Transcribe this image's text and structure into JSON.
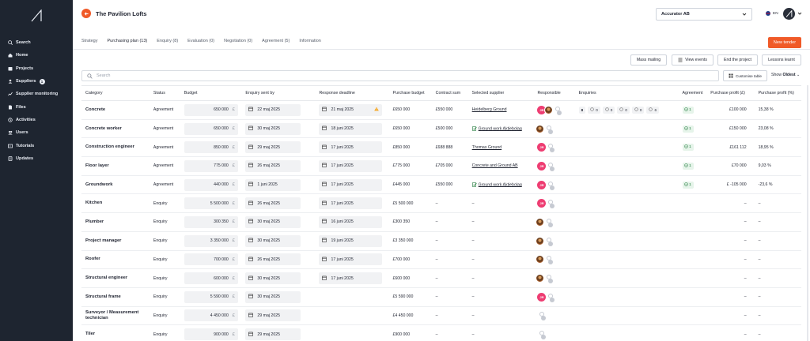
{
  "sidebar": {
    "items": [
      {
        "label": "Search",
        "icon": "search-icon"
      },
      {
        "label": "Home",
        "icon": "home-icon"
      },
      {
        "label": "Projects",
        "icon": "projects-icon"
      },
      {
        "label": "Suppliers",
        "icon": "suppliers-icon",
        "badge": "1"
      },
      {
        "label": "Supplier monitoring",
        "icon": "monitor-icon"
      },
      {
        "label": "Files",
        "icon": "file-icon"
      },
      {
        "label": "Activities",
        "icon": "activity-icon"
      },
      {
        "label": "Users",
        "icon": "users-icon"
      },
      {
        "label": "Tutorials",
        "icon": "tutorial-icon"
      },
      {
        "label": "Updates",
        "icon": "updates-icon"
      }
    ]
  },
  "header": {
    "title": "The Pavilion Lofts",
    "company": "Accurator AB",
    "language": "EN"
  },
  "tabs": [
    {
      "label": "Strategy",
      "active": false
    },
    {
      "label": "Purchasing plan (13)",
      "active": true
    },
    {
      "label": "Enquiry (8)",
      "active": false
    },
    {
      "label": "Evaluation (0)",
      "active": false
    },
    {
      "label": "Negotiation (0)",
      "active": false
    },
    {
      "label": "Agreement (5)",
      "active": false
    },
    {
      "label": "Information",
      "active": false
    }
  ],
  "new_tender": "New tender",
  "actions": {
    "mass_mailing": "Mass mailing",
    "view_events": "View events",
    "end_project": "End the project",
    "lessons": "Lessons learnt"
  },
  "search": {
    "placeholder": "Search"
  },
  "customise": "Customise table",
  "show": {
    "label": "Show",
    "value": "Oldest"
  },
  "columns": [
    "Category",
    "Status",
    "Budget",
    "Enquiry sent by",
    "Response deadline",
    "Purchase budget",
    "Contract sum",
    "Selected supplier",
    "Responsible",
    "Enquiries",
    "Agreement",
    "Purchase profit (£)",
    "Purchase profit (%)"
  ],
  "currency": "£",
  "rows": [
    {
      "category": "Concrete",
      "status": "Agreement",
      "budget": "650 000",
      "sent": "22 maj 2025",
      "deadline": "21 maj 2025",
      "warn": true,
      "pbudget": "£650 000",
      "csum": "£550 000",
      "supplier": "Heidelberg Ground",
      "sup_icon": false,
      "resp": "pink+photo",
      "enq": true,
      "agr": "1",
      "profit": "£100 000",
      "pct": "15,38 %"
    },
    {
      "category": "Concrete worker",
      "status": "Agreement",
      "budget": "650 000",
      "sent": "30 maj 2025",
      "deadline": "18 juni 2025",
      "warn": false,
      "pbudget": "£650 000",
      "csum": "£500 000",
      "supplier": "Ground work Aktiebolag",
      "sup_icon": true,
      "resp": "photo",
      "enq": false,
      "agr": "1",
      "profit": "£150 000",
      "pct": "23,08 %"
    },
    {
      "category": "Construction engineer",
      "status": "Agreement",
      "budget": "850 000",
      "sent": "29 maj 2025",
      "deadline": "17 juni 2025",
      "warn": false,
      "pbudget": "£850 000",
      "csum": "£688 888",
      "supplier": "Thomas Ground",
      "sup_icon": false,
      "resp": "pink",
      "enq": false,
      "agr": "1",
      "profit": "£161 112",
      "pct": "18,95 %"
    },
    {
      "category": "Floor layer",
      "status": "Agreement",
      "budget": "775 000",
      "sent": "26 maj 2025",
      "deadline": "17 juni 2025",
      "warn": false,
      "pbudget": "£775 000",
      "csum": "£705 000",
      "supplier": "Concrete and Ground AB",
      "sup_icon": false,
      "resp": "pink",
      "enq": false,
      "agr": "1",
      "profit": "£70 000",
      "pct": "9,03 %"
    },
    {
      "category": "Groundwork",
      "status": "Agreement",
      "budget": "440 000",
      "sent": "1 juni 2025",
      "deadline": "17 juni 2025",
      "warn": false,
      "pbudget": "£445 000",
      "csum": "£550 000",
      "supplier": "Ground work Aktiebolag",
      "sup_icon": true,
      "resp": "pink",
      "enq": false,
      "agr": "1",
      "profit": "£ -105 000",
      "pct": "-23,6 %"
    },
    {
      "category": "Kitchen",
      "status": "Enquiry",
      "budget": "5 500 000",
      "sent": "26 maj 2025",
      "deadline": "17 juni 2025",
      "warn": false,
      "pbudget": "£5 500 000",
      "csum": "–",
      "supplier": "–",
      "sup_icon": false,
      "resp": "pink",
      "enq": false,
      "agr": "",
      "profit": "–",
      "pct": "–"
    },
    {
      "category": "Plumber",
      "status": "Enquiry",
      "budget": "300 350",
      "sent": "30 maj 2025",
      "deadline": "16 juni 2025",
      "warn": false,
      "pbudget": "£300 350",
      "csum": "–",
      "supplier": "–",
      "sup_icon": false,
      "resp": "photo",
      "enq": false,
      "agr": "",
      "profit": "–",
      "pct": "–"
    },
    {
      "category": "Project manager",
      "status": "Enquiry",
      "budget": "3 350 000",
      "sent": "30 maj 2025",
      "deadline": "19 juni 2025",
      "warn": false,
      "pbudget": "£3 350 000",
      "csum": "–",
      "supplier": "–",
      "sup_icon": false,
      "resp": "photo",
      "enq": false,
      "agr": "",
      "profit": "–",
      "pct": "–"
    },
    {
      "category": "Roofer",
      "status": "Enquiry",
      "budget": "700 000",
      "sent": "26 maj 2025",
      "deadline": "17 juni 2025",
      "warn": false,
      "pbudget": "£700 000",
      "csum": "–",
      "supplier": "–",
      "sup_icon": false,
      "resp": "photo",
      "enq": false,
      "agr": "",
      "profit": "–",
      "pct": "–"
    },
    {
      "category": "Structural engineer",
      "status": "Enquiry",
      "budget": "600 000",
      "sent": "30 maj 2025",
      "deadline": "17 juni 2025",
      "warn": false,
      "pbudget": "£600 000",
      "csum": "–",
      "supplier": "–",
      "sup_icon": false,
      "resp": "photo",
      "enq": false,
      "agr": "",
      "profit": "–",
      "pct": "–"
    },
    {
      "category": "Structural frame",
      "status": "Enquiry",
      "budget": "5 590 000",
      "sent": "30 maj 2025",
      "deadline": "",
      "warn": false,
      "pbudget": "£5 590 000",
      "csum": "–",
      "supplier": "–",
      "sup_icon": false,
      "resp": "pink",
      "enq": false,
      "agr": "",
      "profit": "–",
      "pct": "–"
    },
    {
      "category": "Surveyor / Measurement technician",
      "status": "Enquiry",
      "budget": "4 450 000",
      "sent": "29 maj 2025",
      "deadline": "",
      "warn": false,
      "pbudget": "£4 450 000",
      "csum": "–",
      "supplier": "–",
      "sup_icon": false,
      "resp": "ghost",
      "enq": false,
      "agr": "",
      "profit": "–",
      "pct": "–"
    },
    {
      "category": "Tiler",
      "status": "Enquiry",
      "budget": "900 000",
      "sent": "29 maj 2025",
      "deadline": "",
      "warn": false,
      "pbudget": "£900 000",
      "csum": "–",
      "supplier": "–",
      "sup_icon": false,
      "resp": "ghost",
      "enq": false,
      "agr": "",
      "profit": "–",
      "pct": "–"
    }
  ],
  "enquiry_pills": [
    "8",
    "0",
    "0",
    "0",
    "0",
    "6"
  ],
  "responsible_initials": "JR",
  "colors": {
    "accent": "#f05a28",
    "sidebar": "#1e2530",
    "avatar_pink": "#ee3d72",
    "agreement_green": "#1e7a3a"
  }
}
